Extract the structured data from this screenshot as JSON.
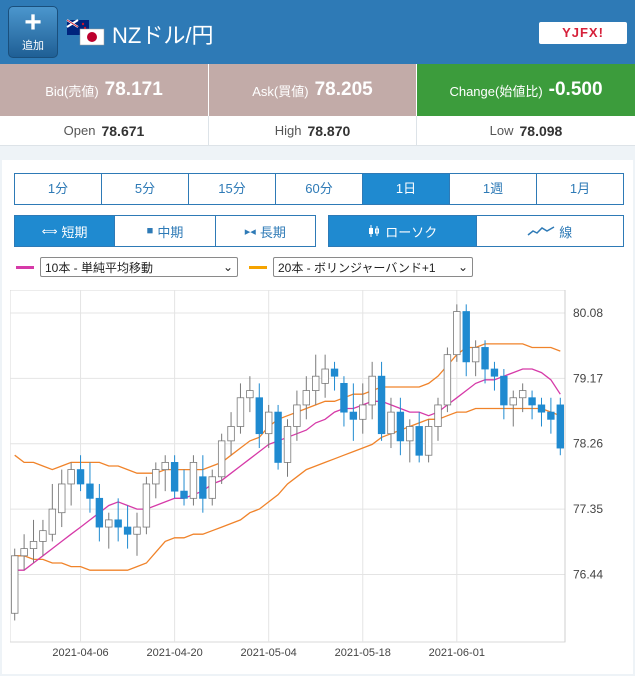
{
  "header": {
    "add_label": "追加",
    "pair_title": "NZドル/円",
    "brand": "YJFX!"
  },
  "quotes": {
    "bid_label": "Bid(売値)",
    "bid_value": "78.171",
    "ask_label": "Ask(買値)",
    "ask_value": "78.205",
    "change_label": "Change(始値比)",
    "change_value": "-0.500"
  },
  "stats": {
    "open_label": "Open",
    "open_value": "78.671",
    "high_label": "High",
    "high_value": "78.870",
    "low_label": "Low",
    "low_value": "78.098"
  },
  "timeframes": [
    "1分",
    "5分",
    "15分",
    "60分",
    "1日",
    "1週",
    "1月"
  ],
  "active_timeframe": "1日",
  "terms": [
    "短期",
    "中期",
    "長期"
  ],
  "chart_types": [
    "ローソク",
    "線"
  ],
  "indicators": {
    "ma_select": "10本 - 単純平均移動",
    "ma_color": "#d63aa8",
    "bb_select": "20本 - ボリンジャーバンド+1",
    "bb_color": "#f5a300"
  },
  "chart_data": {
    "type": "candlestick",
    "x_ticks": [
      "2021-04-06",
      "2021-04-20",
      "2021-05-04",
      "2021-05-18",
      "2021-06-01"
    ],
    "y_ticks": [
      80.08,
      79.17,
      78.26,
      77.35,
      76.44
    ],
    "ylim": [
      75.5,
      80.4
    ],
    "up_color": "#ffffff",
    "down_color": "#1f8ad0",
    "candles": [
      [
        75.9,
        76.8,
        75.8,
        76.7
      ],
      [
        76.7,
        77.0,
        76.5,
        76.8
      ],
      [
        76.8,
        77.2,
        76.6,
        76.9
      ],
      [
        76.9,
        77.2,
        76.7,
        77.05
      ],
      [
        77.0,
        77.7,
        76.9,
        77.35
      ],
      [
        77.3,
        77.9,
        77.1,
        77.7
      ],
      [
        77.7,
        78.0,
        77.4,
        77.9
      ],
      [
        77.9,
        78.1,
        77.6,
        77.7
      ],
      [
        77.7,
        78.0,
        77.3,
        77.5
      ],
      [
        77.5,
        77.7,
        76.9,
        77.1
      ],
      [
        77.1,
        77.3,
        76.8,
        77.2
      ],
      [
        77.2,
        77.5,
        76.9,
        77.1
      ],
      [
        77.1,
        77.4,
        76.8,
        77.0
      ],
      [
        77.0,
        77.3,
        76.7,
        77.1
      ],
      [
        77.1,
        77.8,
        77.0,
        77.7
      ],
      [
        77.7,
        78.0,
        77.5,
        77.9
      ],
      [
        77.9,
        78.1,
        77.6,
        78.0
      ],
      [
        78.0,
        78.1,
        77.5,
        77.6
      ],
      [
        77.6,
        77.9,
        77.4,
        77.5
      ],
      [
        77.5,
        78.1,
        77.4,
        78.0
      ],
      [
        77.8,
        78.1,
        77.3,
        77.5
      ],
      [
        77.5,
        77.9,
        77.4,
        77.8
      ],
      [
        77.8,
        78.4,
        77.7,
        78.3
      ],
      [
        78.3,
        78.7,
        78.1,
        78.5
      ],
      [
        78.5,
        79.1,
        78.4,
        78.9
      ],
      [
        78.9,
        79.2,
        78.7,
        79.0
      ],
      [
        78.9,
        79.1,
        78.2,
        78.4
      ],
      [
        78.4,
        78.8,
        78.2,
        78.7
      ],
      [
        78.7,
        78.8,
        77.9,
        78.0
      ],
      [
        78.0,
        78.6,
        77.8,
        78.5
      ],
      [
        78.5,
        79.0,
        78.3,
        78.8
      ],
      [
        78.8,
        79.2,
        78.6,
        79.0
      ],
      [
        79.0,
        79.5,
        78.8,
        79.2
      ],
      [
        79.1,
        79.5,
        78.9,
        79.3
      ],
      [
        79.3,
        79.4,
        79.0,
        79.2
      ],
      [
        79.1,
        79.2,
        78.5,
        78.7
      ],
      [
        78.7,
        79.1,
        78.3,
        78.6
      ],
      [
        78.6,
        79.1,
        78.4,
        78.8
      ],
      [
        78.8,
        79.4,
        78.6,
        79.2
      ],
      [
        79.2,
        79.4,
        78.3,
        78.4
      ],
      [
        78.4,
        78.9,
        78.2,
        78.7
      ],
      [
        78.7,
        78.9,
        78.1,
        78.3
      ],
      [
        78.3,
        78.6,
        78.0,
        78.5
      ],
      [
        78.5,
        78.7,
        78.0,
        78.1
      ],
      [
        78.1,
        78.6,
        78.0,
        78.5
      ],
      [
        78.5,
        78.9,
        78.3,
        78.8
      ],
      [
        78.8,
        79.6,
        78.7,
        79.5
      ],
      [
        79.5,
        80.2,
        79.4,
        80.1
      ],
      [
        80.1,
        80.2,
        79.2,
        79.4
      ],
      [
        79.4,
        79.7,
        79.2,
        79.6
      ],
      [
        79.6,
        79.7,
        79.1,
        79.3
      ],
      [
        79.3,
        79.4,
        79.0,
        79.2
      ],
      [
        79.2,
        79.3,
        78.6,
        78.8
      ],
      [
        78.8,
        79.0,
        78.5,
        78.9
      ],
      [
        78.9,
        79.1,
        78.7,
        79.0
      ],
      [
        78.9,
        79.0,
        78.6,
        78.8
      ],
      [
        78.8,
        78.9,
        78.5,
        78.7
      ],
      [
        78.7,
        78.9,
        78.4,
        78.6
      ],
      [
        78.8,
        78.9,
        78.1,
        78.2
      ]
    ],
    "ma": [
      76.5,
      76.5,
      76.6,
      76.7,
      76.8,
      76.9,
      77.0,
      77.1,
      77.2,
      77.3,
      77.4,
      77.45,
      77.4,
      77.35,
      77.35,
      77.4,
      77.45,
      77.5,
      77.5,
      77.55,
      77.6,
      77.7,
      77.75,
      77.85,
      77.95,
      78.05,
      78.15,
      78.25,
      78.3,
      78.35,
      78.4,
      78.45,
      78.55,
      78.6,
      78.7,
      78.75,
      78.75,
      78.8,
      78.85,
      78.85,
      78.8,
      78.75,
      78.7,
      78.7,
      78.65,
      78.7,
      78.8,
      78.9,
      79.0,
      79.1,
      79.15,
      79.15,
      79.2,
      79.25,
      79.3,
      79.3,
      79.25,
      79.15,
      78.95
    ],
    "bb_upper": [
      78.1,
      78.0,
      78.0,
      77.95,
      77.9,
      77.95,
      78.0,
      78.0,
      78.0,
      78.0,
      77.95,
      77.95,
      77.9,
      77.85,
      77.85,
      77.85,
      77.9,
      77.9,
      77.9,
      77.9,
      77.9,
      77.95,
      78.0,
      78.1,
      78.2,
      78.3,
      78.35,
      78.5,
      78.6,
      78.65,
      78.7,
      78.75,
      78.8,
      78.85,
      78.85,
      78.9,
      78.95,
      78.95,
      79.0,
      79.05,
      79.05,
      79.05,
      79.05,
      79.05,
      79.1,
      79.2,
      79.35,
      79.5,
      79.6,
      79.6,
      79.65,
      79.65,
      79.65,
      79.65,
      79.65,
      79.6,
      79.6,
      79.6,
      79.55
    ],
    "bb_lower": [
      76.7,
      76.7,
      76.65,
      76.65,
      76.6,
      76.6,
      76.55,
      76.55,
      76.5,
      76.5,
      76.5,
      76.5,
      76.5,
      76.55,
      76.6,
      76.75,
      76.9,
      76.95,
      76.95,
      77.0,
      77.0,
      77.05,
      77.1,
      77.15,
      77.2,
      77.3,
      77.35,
      77.45,
      77.55,
      77.7,
      77.8,
      77.9,
      77.95,
      78.0,
      78.05,
      78.1,
      78.15,
      78.2,
      78.25,
      78.35,
      78.4,
      78.45,
      78.5,
      78.55,
      78.6,
      78.6,
      78.65,
      78.7,
      78.7,
      78.75,
      78.75,
      78.75,
      78.75,
      78.75,
      78.75,
      78.75,
      78.75,
      78.7,
      78.65
    ]
  }
}
